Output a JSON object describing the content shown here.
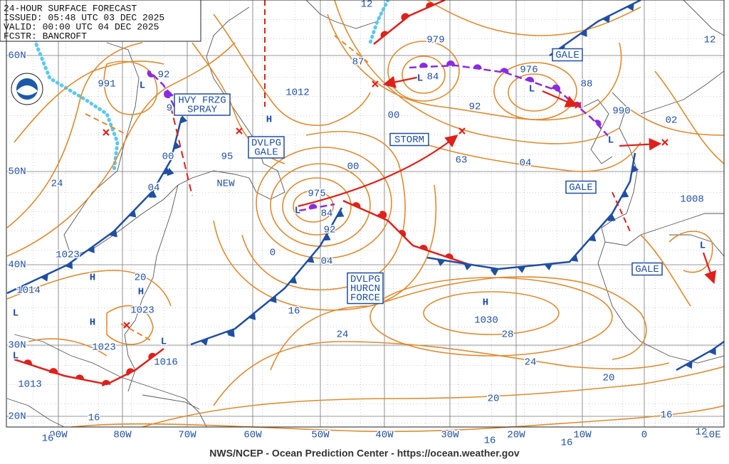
{
  "header": {
    "lines": [
      "24-HOUR SURFACE FORECAST",
      "ISSUED: 05:48 UTC 03 DEC 2025",
      "VALID:  00:00 UTC 04 DEC 2025",
      "FCSTR:  BANCROFT"
    ]
  },
  "footer": "NWS/NCEP - Ocean Prediction Center - https://ocean.weather.gov",
  "latitude_labels": [
    "60N",
    "50N",
    "40N",
    "30N",
    "20N"
  ],
  "longitude_labels": [
    "90W",
    "80W",
    "70W",
    "60W",
    "50W",
    "40W",
    "30W",
    "20W",
    "10W",
    "0",
    "10E"
  ],
  "centers": [
    {
      "symbol": "L",
      "pressure": "991"
    },
    {
      "symbol": "H",
      "pressure": "1012"
    },
    {
      "symbol": "L",
      "pressure": "975"
    },
    {
      "symbol": "L",
      "pressure": "979"
    },
    {
      "symbol": "L",
      "pressure": "976"
    },
    {
      "symbol": "L",
      "pressure": "990"
    },
    {
      "symbol": "H",
      "pressure": "1023"
    },
    {
      "symbol": "H",
      "pressure": "1023"
    },
    {
      "symbol": "H",
      "pressure": "1023"
    },
    {
      "symbol": "L",
      "pressure": "1016"
    },
    {
      "symbol": "L",
      "pressure": "1014"
    },
    {
      "symbol": "L",
      "pressure": "1013"
    },
    {
      "symbol": "H",
      "pressure": "1030"
    },
    {
      "symbol": "L",
      "pressure": "1008"
    }
  ],
  "isobar_labels": [
    "92",
    "9",
    "00",
    "04",
    "24",
    "95",
    "87",
    "84",
    "00",
    "92",
    "88",
    "02",
    "63",
    "04",
    "00",
    "84",
    "92",
    "0",
    "04",
    "16",
    "24",
    "28",
    "24",
    "20",
    "20",
    "16",
    "16",
    "16",
    "16",
    "16",
    "12",
    "12",
    "12",
    "20"
  ],
  "warnings": [
    [
      "HVY FRZG",
      "SPRAY"
    ],
    [
      "DVLPG",
      "GALE"
    ],
    [
      "STORM"
    ],
    [
      "GALE"
    ],
    [
      "GALE"
    ],
    [
      "GALE"
    ],
    [
      "DVLPG",
      "HURCN",
      "FORCE"
    ]
  ],
  "place_labels": [
    "NEW"
  ]
}
